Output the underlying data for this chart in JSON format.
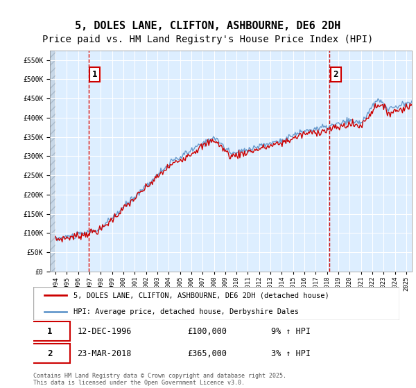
{
  "title": "5, DOLES LANE, CLIFTON, ASHBOURNE, DE6 2DH",
  "subtitle": "Price paid vs. HM Land Registry's House Price Index (HPI)",
  "legend_line1": "5, DOLES LANE, CLIFTON, ASHBOURNE, DE6 2DH (detached house)",
  "legend_line2": "HPI: Average price, detached house, Derbyshire Dales",
  "footer": "Contains HM Land Registry data © Crown copyright and database right 2025.\nThis data is licensed under the Open Government Licence v3.0.",
  "annotation1_label": "1",
  "annotation1_date": "12-DEC-1996",
  "annotation1_price": "£100,000",
  "annotation1_hpi": "9% ↑ HPI",
  "annotation2_label": "2",
  "annotation2_date": "23-MAR-2018",
  "annotation2_price": "£365,000",
  "annotation2_hpi": "3% ↑ HPI",
  "sale1_x": 1996.95,
  "sale1_y": 100000,
  "sale2_x": 2018.23,
  "sale2_y": 365000,
  "ylim": [
    0,
    575000
  ],
  "xlim_start": 1993.5,
  "xlim_end": 2025.5,
  "red_color": "#cc0000",
  "blue_color": "#6699cc",
  "bg_color": "#ddeeff",
  "grid_color": "#ffffff",
  "title_fontsize": 11,
  "subtitle_fontsize": 10
}
